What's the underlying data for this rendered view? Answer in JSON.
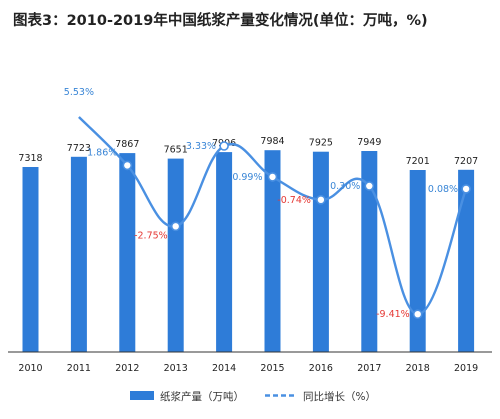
{
  "title": "图表3：2010-2019年中国纸浆产量变化情况(单位：万吨，%)",
  "colors": {
    "bar": "#2E7CD8",
    "line": "#4A90E2",
    "positive_label": "#3A86D6",
    "negative_label": "#E53935",
    "axis": "#333333"
  },
  "chart_data": {
    "type": "bar",
    "categories": [
      "2010",
      "2011",
      "2012",
      "2013",
      "2014",
      "2015",
      "2016",
      "2017",
      "2018",
      "2019"
    ],
    "series": [
      {
        "name": "纸浆产量（万吨）",
        "type": "bar",
        "values": [
          7318,
          7723,
          7867,
          7651,
          7906,
          7984,
          7925,
          7949,
          7201,
          7207
        ],
        "labels": [
          "7318",
          "7723",
          "7867",
          "7651",
          "7906",
          "7984",
          "7925",
          "7949",
          "7201",
          "7207"
        ]
      },
      {
        "name": "同比增长（%）",
        "type": "line",
        "values": [
          null,
          5.53,
          1.86,
          -2.75,
          3.33,
          0.99,
          -0.74,
          0.3,
          -9.41,
          0.08
        ],
        "labels": [
          null,
          "5.53%",
          "1.86%",
          "-2.75%",
          "3.33%",
          "0.99%",
          "-0.74%",
          "0.30%",
          "-9.41%",
          "0.08%"
        ]
      }
    ],
    "legend": {
      "placement": "bottom",
      "items": [
        "纸浆产量（万吨）",
        "同比增长（%）"
      ]
    },
    "grid": false
  }
}
